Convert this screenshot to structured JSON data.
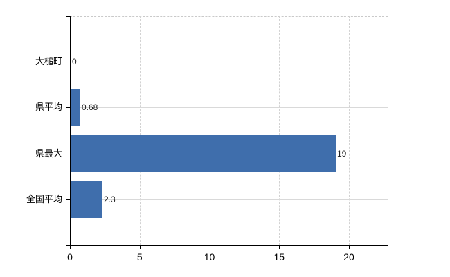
{
  "chart_data": {
    "type": "bar",
    "orientation": "horizontal",
    "title": "",
    "xlabel": "",
    "ylabel": "",
    "categories": [
      "大槌町",
      "県平均",
      "県最大",
      "全国平均"
    ],
    "values": [
      0,
      0.68,
      19,
      2.3
    ],
    "value_labels": [
      "0",
      "0.68",
      "19",
      "2.3"
    ],
    "xticks": [
      0,
      5,
      10,
      15,
      20
    ],
    "xtick_labels": [
      "0",
      "5",
      "10",
      "15",
      "20"
    ],
    "xlim": [
      0,
      22.8
    ],
    "grid": true,
    "legend": false,
    "colors": {
      "bar": "#3f6eac",
      "axis": "#000000",
      "hgrid": "#d9d9d9",
      "vgrid": "#d2d2d2",
      "top_border": "#c9c9c9",
      "background": "#ffffff",
      "text": "#000000"
    }
  }
}
